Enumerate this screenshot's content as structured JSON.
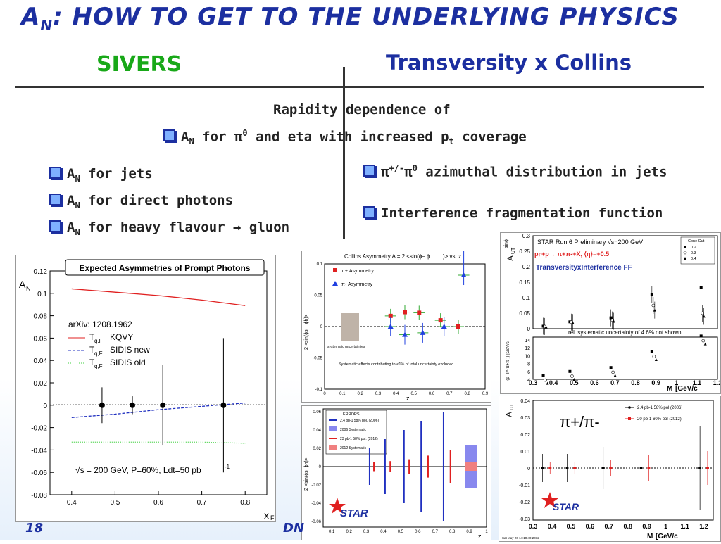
{
  "slide": {
    "title_main": "A",
    "title_sub": "N",
    "title_rest": ": HOW TO GET TO THE UNDERLYING PHYSICS",
    "left_heading": "SIVERS",
    "right_heading": "Transversity x Collins",
    "center_line1": "Rapidity dependence of",
    "center_line2_a": "A",
    "center_line2_n": "N",
    "center_line2_b": " for π",
    "center_line2_sup": "0",
    "center_line2_c": " and eta with increased p",
    "center_line2_t": "t",
    "center_line2_d": " coverage",
    "left_bullets": [
      {
        "a": "A",
        "n": "N",
        "rest": " for jets"
      },
      {
        "a": "A",
        "n": "N",
        "rest": " for direct photons"
      },
      {
        "a": "A",
        "n": "N",
        "rest": " for heavy flavour → gluon"
      }
    ],
    "right_bullet1_a": "π",
    "right_bullet1_sup": "+/-",
    "right_bullet1_b": "π",
    "right_bullet1_sup2": "0",
    "right_bullet1_c": " azimuthal distribution in jets",
    "right_bullet2": "Interference fragmentation function",
    "page_number": "18",
    "footer_fragment": "DN"
  },
  "plot_photons": {
    "title": "Expected Asymmetries of Prompt Photons",
    "ylabel_a": "A",
    "ylabel_n": "N",
    "xlabel_a": "x",
    "xlabel_f": "F",
    "yticks": [
      "0.12",
      "0.1",
      "0.08",
      "0.06",
      "0.04",
      "0.02",
      "0",
      "-0.02",
      "-0.04",
      "-0.06",
      "-0.08"
    ],
    "xticks": [
      "0.4",
      "0.5",
      "0.6",
      "0.7",
      "0.8"
    ],
    "arxiv": "arXiv: 1208.1962",
    "legend": [
      {
        "t": "T",
        "sub": "q,F",
        "label": "KQVY",
        "color": "#e02020"
      },
      {
        "t": "T",
        "sub": "q,F",
        "label": "SIDIS new",
        "color": "#2030c0"
      },
      {
        "t": "T",
        "sub": "q,F",
        "label": "SIDIS old",
        "color": "#40d040"
      }
    ],
    "note": "√s = 200 GeV, P=60%, Ldt=50 pb",
    "note_sup": "-1"
  },
  "plot_collins": {
    "title": "Collins Asymmetry A = 2 <sin(ϕ",
    "title_rest": " − ϕ",
    "title_end": ")> vs. z",
    "ylabel": "2 <sin(ϕs − ϕh)>",
    "xlabel": "z",
    "legend_pos": "π+ Asymmetry",
    "legend_neg": "π- Asymmetry",
    "syst_label": "systematic uncertainties",
    "note": "Systematic effects contributing to <1% of total uncertainty excluded",
    "yticks": [
      "0.1",
      "0.05",
      "0",
      "-0.05",
      "-0.1"
    ],
    "xticks": [
      "0",
      "0.1",
      "0.2",
      "0.3",
      "0.4",
      "0.5",
      "0.6",
      "0.7",
      "0.8",
      "0.9"
    ]
  },
  "plot_errors": {
    "legend_title": "ERRORS",
    "legend": [
      "2.4 pb-1 58% pol. (2006)",
      "2006 Systematic",
      "23 pb-1 58% pol. (2012)",
      "2012 Systematic"
    ],
    "ylabel": "2 <sin(ϕs−ϕh)>",
    "xlabel": "z",
    "logo": "STAR",
    "yticks": [
      "0.06",
      "0.04",
      "0.02",
      "0",
      "-0.02",
      "-0.04",
      "-0.06"
    ],
    "xticks": [
      "0.1",
      "0.2",
      "0.3",
      "0.4",
      "0.5",
      "0.6",
      "0.7",
      "0.8",
      "0.9",
      "1"
    ]
  },
  "plot_iff": {
    "run_label": "STAR Run 6 Preliminary √s=200 GeV",
    "reaction": "p↑+p→ π+π-+X, ⟨η⟩=+0.5",
    "label_ff": "TransversityxInterference FF",
    "cone_title": "Cone Cut",
    "cone": [
      "0.2",
      "0.3",
      "0.4"
    ],
    "ylabel_top": "A",
    "ylabel_top_sub": "UT",
    "ylabel_top_sup": "sinϕ",
    "syst_note": "rel. systematic uncertainty of 4.6% not shown",
    "ylabel_bottom": "⟨p_T^{π+π-}⟩ [GeV/c]",
    "xlabel": "M",
    "xlabel_rest": " [GeV/c",
    "xlabel_end": "]",
    "yticks_top": [
      "0.3",
      "0.25",
      "0.2",
      "0.15",
      "0.1",
      "0.05",
      "0"
    ],
    "yticks_bottom": [
      "14",
      "12",
      "10",
      "8",
      "6",
      "4"
    ],
    "xticks": [
      "0.3",
      "0.4",
      "0.5",
      "0.6",
      "0.7",
      "0.8",
      "0.9",
      "1",
      "1.1",
      "1.2"
    ]
  },
  "plot_pipi": {
    "label": "π+/π-",
    "legend": [
      {
        "label": "2.4 pb-1 58% pol (2006)",
        "color": "#000000"
      },
      {
        "label": "20 pb-1 60% pol (2012)",
        "color": "#e02020"
      }
    ],
    "logo": "STAR",
    "ylabel": "A",
    "ylabel_sub": "UT",
    "ylabel_sup": "sinϕ",
    "xlabel": "M",
    "xlabel_rest": " [GeV/c",
    "xlabel_end": "]",
    "yticks": [
      "0.04",
      "0.03",
      "0.02",
      "0.01",
      "0",
      "-0.01",
      "-0.02",
      "-0.03"
    ],
    "xticks": [
      "0.3",
      "0.4",
      "0.5",
      "0.6",
      "0.7",
      "0.8",
      "0.9",
      "1",
      "1.1",
      "1.2"
    ],
    "timestamp": "Sat May 26 14:10:40 2012"
  },
  "chart_data": [
    {
      "type": "line",
      "title": "Expected Asymmetries of Prompt Photons",
      "xlabel": "xF",
      "ylabel": "AN",
      "xlim": [
        0.35,
        0.85
      ],
      "ylim": [
        -0.08,
        0.12
      ],
      "series": [
        {
          "name": "KQVY",
          "x": [
            0.4,
            0.5,
            0.6,
            0.7,
            0.8
          ],
          "values": [
            0.104,
            0.101,
            0.098,
            0.094,
            0.089
          ]
        },
        {
          "name": "SIDIS new",
          "x": [
            0.4,
            0.5,
            0.6,
            0.7,
            0.8
          ],
          "values": [
            -0.011,
            -0.008,
            -0.004,
            -0.001,
            0.002
          ]
        },
        {
          "name": "SIDIS old",
          "x": [
            0.4,
            0.5,
            0.6,
            0.7,
            0.8
          ],
          "values": [
            -0.033,
            -0.033,
            -0.033,
            -0.033,
            -0.034
          ]
        }
      ],
      "points": [
        {
          "x": 0.47,
          "y": 0.0,
          "err": 0.016
        },
        {
          "x": 0.54,
          "y": 0.0,
          "err": 0.008
        },
        {
          "x": 0.61,
          "y": 0.0,
          "err": 0.036
        },
        {
          "x": 0.75,
          "y": 0.0,
          "err": 0.06
        }
      ]
    },
    {
      "type": "scatter",
      "title": "Collins Asymmetry",
      "xlabel": "z",
      "xlim": [
        0,
        0.9
      ],
      "ylim": [
        -0.1,
        0.1
      ],
      "series": [
        {
          "name": "π+ Asymmetry",
          "x": [
            0.37,
            0.45,
            0.53,
            0.65,
            0.75
          ],
          "values": [
            0.017,
            0.023,
            0.022,
            0.01,
            0.0
          ]
        },
        {
          "name": "π- Asymmetry",
          "x": [
            0.37,
            0.45,
            0.55,
            0.67,
            0.78
          ],
          "values": [
            0.0,
            -0.013,
            -0.01,
            0.0,
            0.082
          ]
        }
      ]
    },
    {
      "type": "scatter",
      "title": "Interference FF",
      "xlabel": "M",
      "xlim": [
        0.3,
        1.2
      ],
      "ylim": [
        0,
        0.3
      ],
      "series": [
        {
          "name": "0.2",
          "x": [
            0.35,
            0.48,
            0.68,
            0.88,
            1.12
          ],
          "values": [
            0.008,
            0.022,
            0.035,
            0.11,
            0.133
          ]
        },
        {
          "name": "0.3",
          "x": [
            0.35,
            0.48,
            0.68,
            0.88,
            1.12
          ],
          "values": [
            0.007,
            0.021,
            0.028,
            0.075,
            0.05
          ]
        },
        {
          "name": "0.4",
          "x": [
            0.35,
            0.48,
            0.68,
            0.88,
            1.12
          ],
          "values": [
            0.006,
            0.02,
            0.024,
            0.06,
            0.04
          ]
        }
      ]
    },
    {
      "type": "scatter",
      "title": "π+/π-",
      "xlabel": "M",
      "xlim": [
        0.3,
        1.2
      ],
      "ylim": [
        -0.03,
        0.04
      ],
      "series": [
        {
          "name": "2.4 pb-1 58% pol (2006)",
          "x": [
            0.35,
            0.48,
            0.67,
            0.87,
            1.18
          ],
          "values": [
            0,
            0,
            0,
            0,
            0
          ]
        },
        {
          "name": "20 pb-1 60% pol (2012)",
          "x": [
            0.39,
            0.52,
            0.71,
            0.91,
            1.22
          ],
          "values": [
            0,
            0,
            0,
            0,
            0
          ]
        }
      ]
    }
  ]
}
